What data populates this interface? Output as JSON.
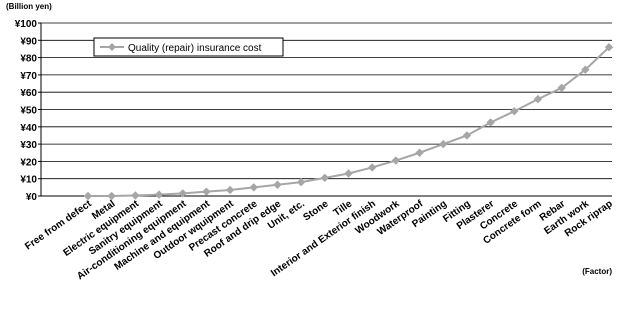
{
  "chart_data": {
    "type": "line",
    "y_unit_label": "(Billion yen)",
    "x_unit_label": "(Factor)",
    "ylim": [
      0,
      100
    ],
    "y_ticks": [
      "¥0",
      "¥10",
      "¥20",
      "¥30",
      "¥40",
      "¥50",
      "¥60",
      "¥70",
      "¥80",
      "¥90",
      "¥100"
    ],
    "grid": true,
    "legend_position": "top-left",
    "categories": [
      "Free from defect",
      "Metal",
      "Electric equipment",
      "Sanitry equipment",
      "Air-conditioning equipment",
      "Machine and equipment",
      "Outdoor wquipment",
      "Precast concrete",
      "Roof and drip edge",
      "Unit, etc.",
      "Stone",
      "Tille",
      "Interior and Exterior finish",
      "Woodwork",
      "Waterproof",
      "Painting",
      "Fitting",
      "Plasterer",
      "Concrete",
      "Concrete form",
      "Rebar",
      "Earth work",
      "Rock riprap"
    ],
    "series": [
      {
        "name": "Quality (repair) insurance cost",
        "color": "#a6a6a6",
        "values": [
          0,
          0,
          0.3,
          0.8,
          1.5,
          2.5,
          3.5,
          5,
          6.5,
          8,
          10.5,
          13,
          16.5,
          20.5,
          25,
          30,
          35,
          42.5,
          49,
          56,
          62.5,
          73,
          86
        ]
      }
    ]
  }
}
